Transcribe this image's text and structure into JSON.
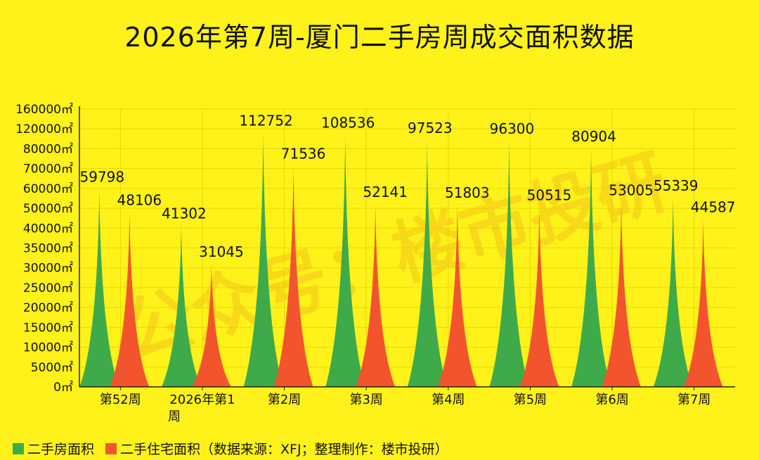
{
  "chart_data": {
    "type": "area",
    "title": "2026年第7周-厦门二手房周成交面积数据",
    "categories": [
      "第52周",
      "2026年第1周",
      "第2周",
      "第3周",
      "第4周",
      "第5周",
      "第6周",
      "第7周"
    ],
    "y_ticks": [
      "0㎡",
      "5000㎡",
      "10000㎡",
      "15000㎡",
      "20000㎡",
      "25000㎡",
      "30000㎡",
      "35000㎡",
      "40000㎡",
      "50000㎡",
      "60000㎡",
      "70000㎡",
      "80000㎡",
      "120000㎡",
      "160000㎡"
    ],
    "y_tick_values": [
      0,
      5000,
      10000,
      15000,
      20000,
      25000,
      30000,
      35000,
      40000,
      50000,
      60000,
      70000,
      80000,
      120000,
      160000
    ],
    "series": [
      {
        "name": "二手房面积",
        "color": "#3FAA4A",
        "values": [
          59798,
          41302,
          112752,
          108536,
          97523,
          96300,
          80904,
          55339
        ]
      },
      {
        "name": "二手住宅面积",
        "color": "#F2552E",
        "values": [
          48106,
          31045,
          71536,
          52141,
          51803,
          50515,
          53005,
          44587
        ]
      }
    ],
    "grid": true,
    "legend": "bottom-left"
  },
  "legend": {
    "item1": "二手房面积",
    "item2": "二手住宅面积（数据来源：XFJ；整理制作：楼市投研）"
  },
  "watermark": "公众号：楼市投研"
}
